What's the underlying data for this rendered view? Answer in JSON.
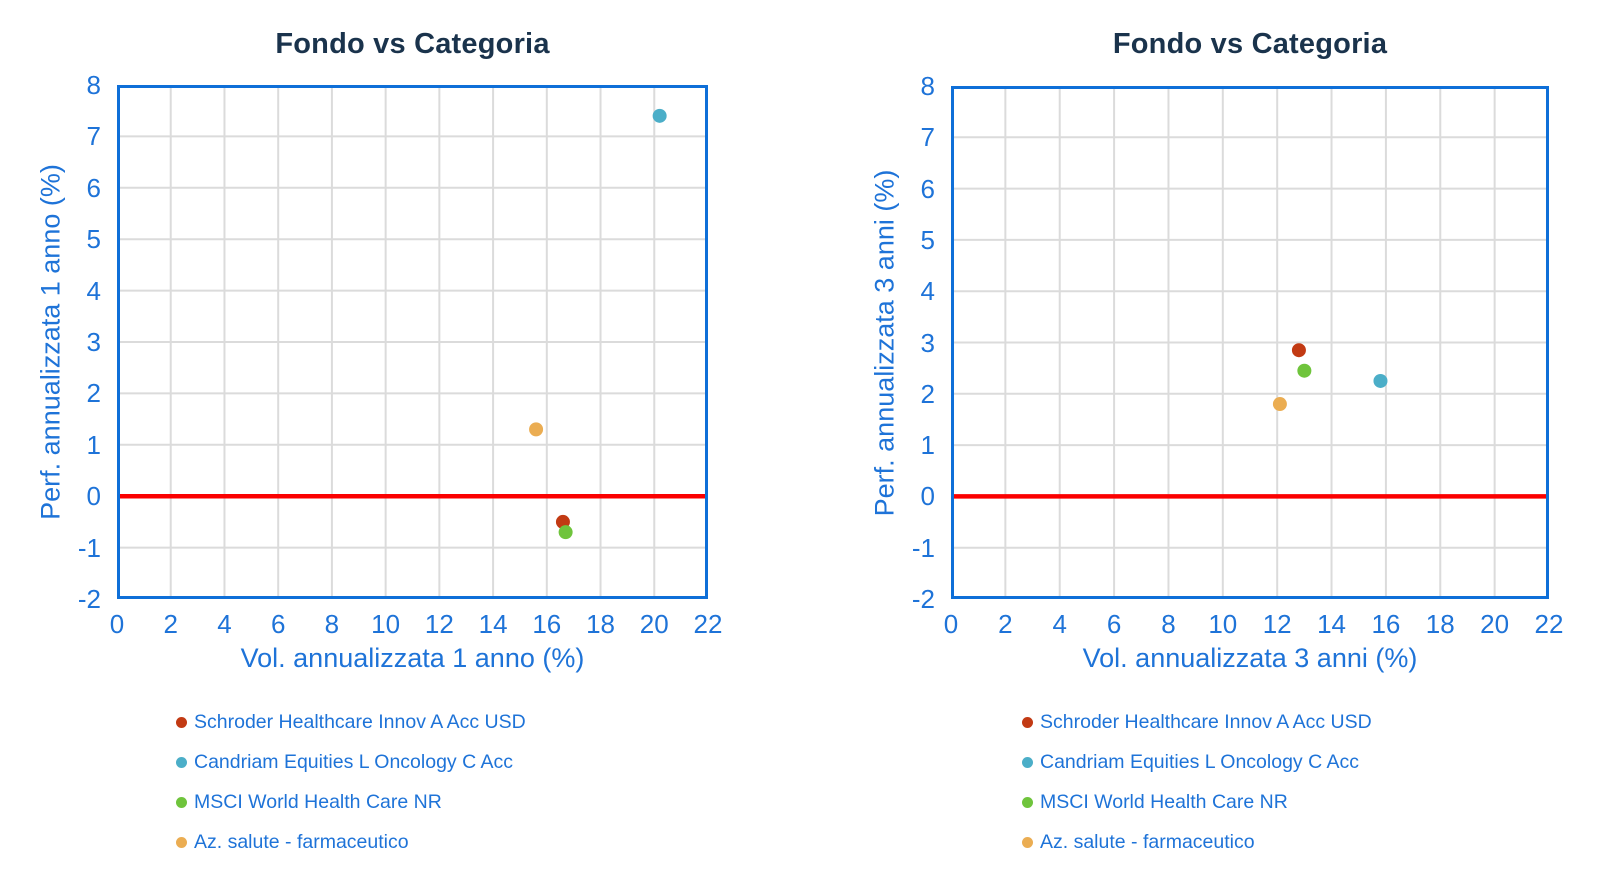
{
  "style": {
    "background": "#FFFFFF",
    "title_color": "#1A334C",
    "axis_text_color": "#1E73D8",
    "plot_border_color": "#0E6FD8",
    "gridline_color": "#DBDBDB",
    "zero_line_color": "#FB0000",
    "legend_text_color": "#1E73D8"
  },
  "chart_data": [
    {
      "type": "scatter",
      "title": "Fondo vs Categoria",
      "xlabel": "Vol. annualizzata 1 anno (%)",
      "ylabel": "Perf. annualizzata 1 anno (%)",
      "xlim": [
        0,
        22
      ],
      "ylim": [
        -2,
        8
      ],
      "x_tick_step": 2,
      "y_tick_step": 1,
      "x_grid_step": 2,
      "y_grid_step": 1,
      "grid": true,
      "zero_line_y": 0,
      "legend_position": "bottom-left",
      "series": [
        {
          "name": "Schroder Healthcare Innov A Acc USD",
          "color": "#C23A13",
          "points": [
            [
              16.6,
              -0.5
            ]
          ]
        },
        {
          "name": "Candriam Equities L Oncology C Acc",
          "color": "#4BAEC8",
          "points": [
            [
              20.2,
              7.4
            ]
          ]
        },
        {
          "name": "MSCI World Health Care NR",
          "color": "#6FC43C",
          "points": [
            [
              16.7,
              -0.7
            ]
          ]
        },
        {
          "name": "Az. salute - farmaceutico",
          "color": "#EBAD52",
          "points": [
            [
              15.6,
              1.3
            ]
          ]
        }
      ]
    },
    {
      "type": "scatter",
      "title": "Fondo vs Categoria",
      "xlabel": "Vol. annualizzata 3 anni (%)",
      "ylabel": "Perf. annualizzata 3 anni (%)",
      "xlim": [
        0,
        22
      ],
      "ylim": [
        -2,
        8
      ],
      "x_tick_step": 2,
      "y_tick_step": 1,
      "x_grid_step": 2,
      "y_grid_step": 1,
      "grid": true,
      "zero_line_y": 0,
      "legend_position": "bottom-left",
      "series": [
        {
          "name": "Schroder Healthcare Innov A Acc USD",
          "color": "#C23A13",
          "points": [
            [
              12.8,
              2.85
            ]
          ]
        },
        {
          "name": "Candriam Equities L Oncology C Acc",
          "color": "#4BAEC8",
          "points": [
            [
              15.8,
              2.25
            ]
          ]
        },
        {
          "name": "MSCI World Health Care NR",
          "color": "#6FC43C",
          "points": [
            [
              13.0,
              2.45
            ]
          ]
        },
        {
          "name": "Az. salute - farmaceutico",
          "color": "#EBAD52",
          "points": [
            [
              12.1,
              1.8
            ]
          ]
        }
      ]
    }
  ]
}
